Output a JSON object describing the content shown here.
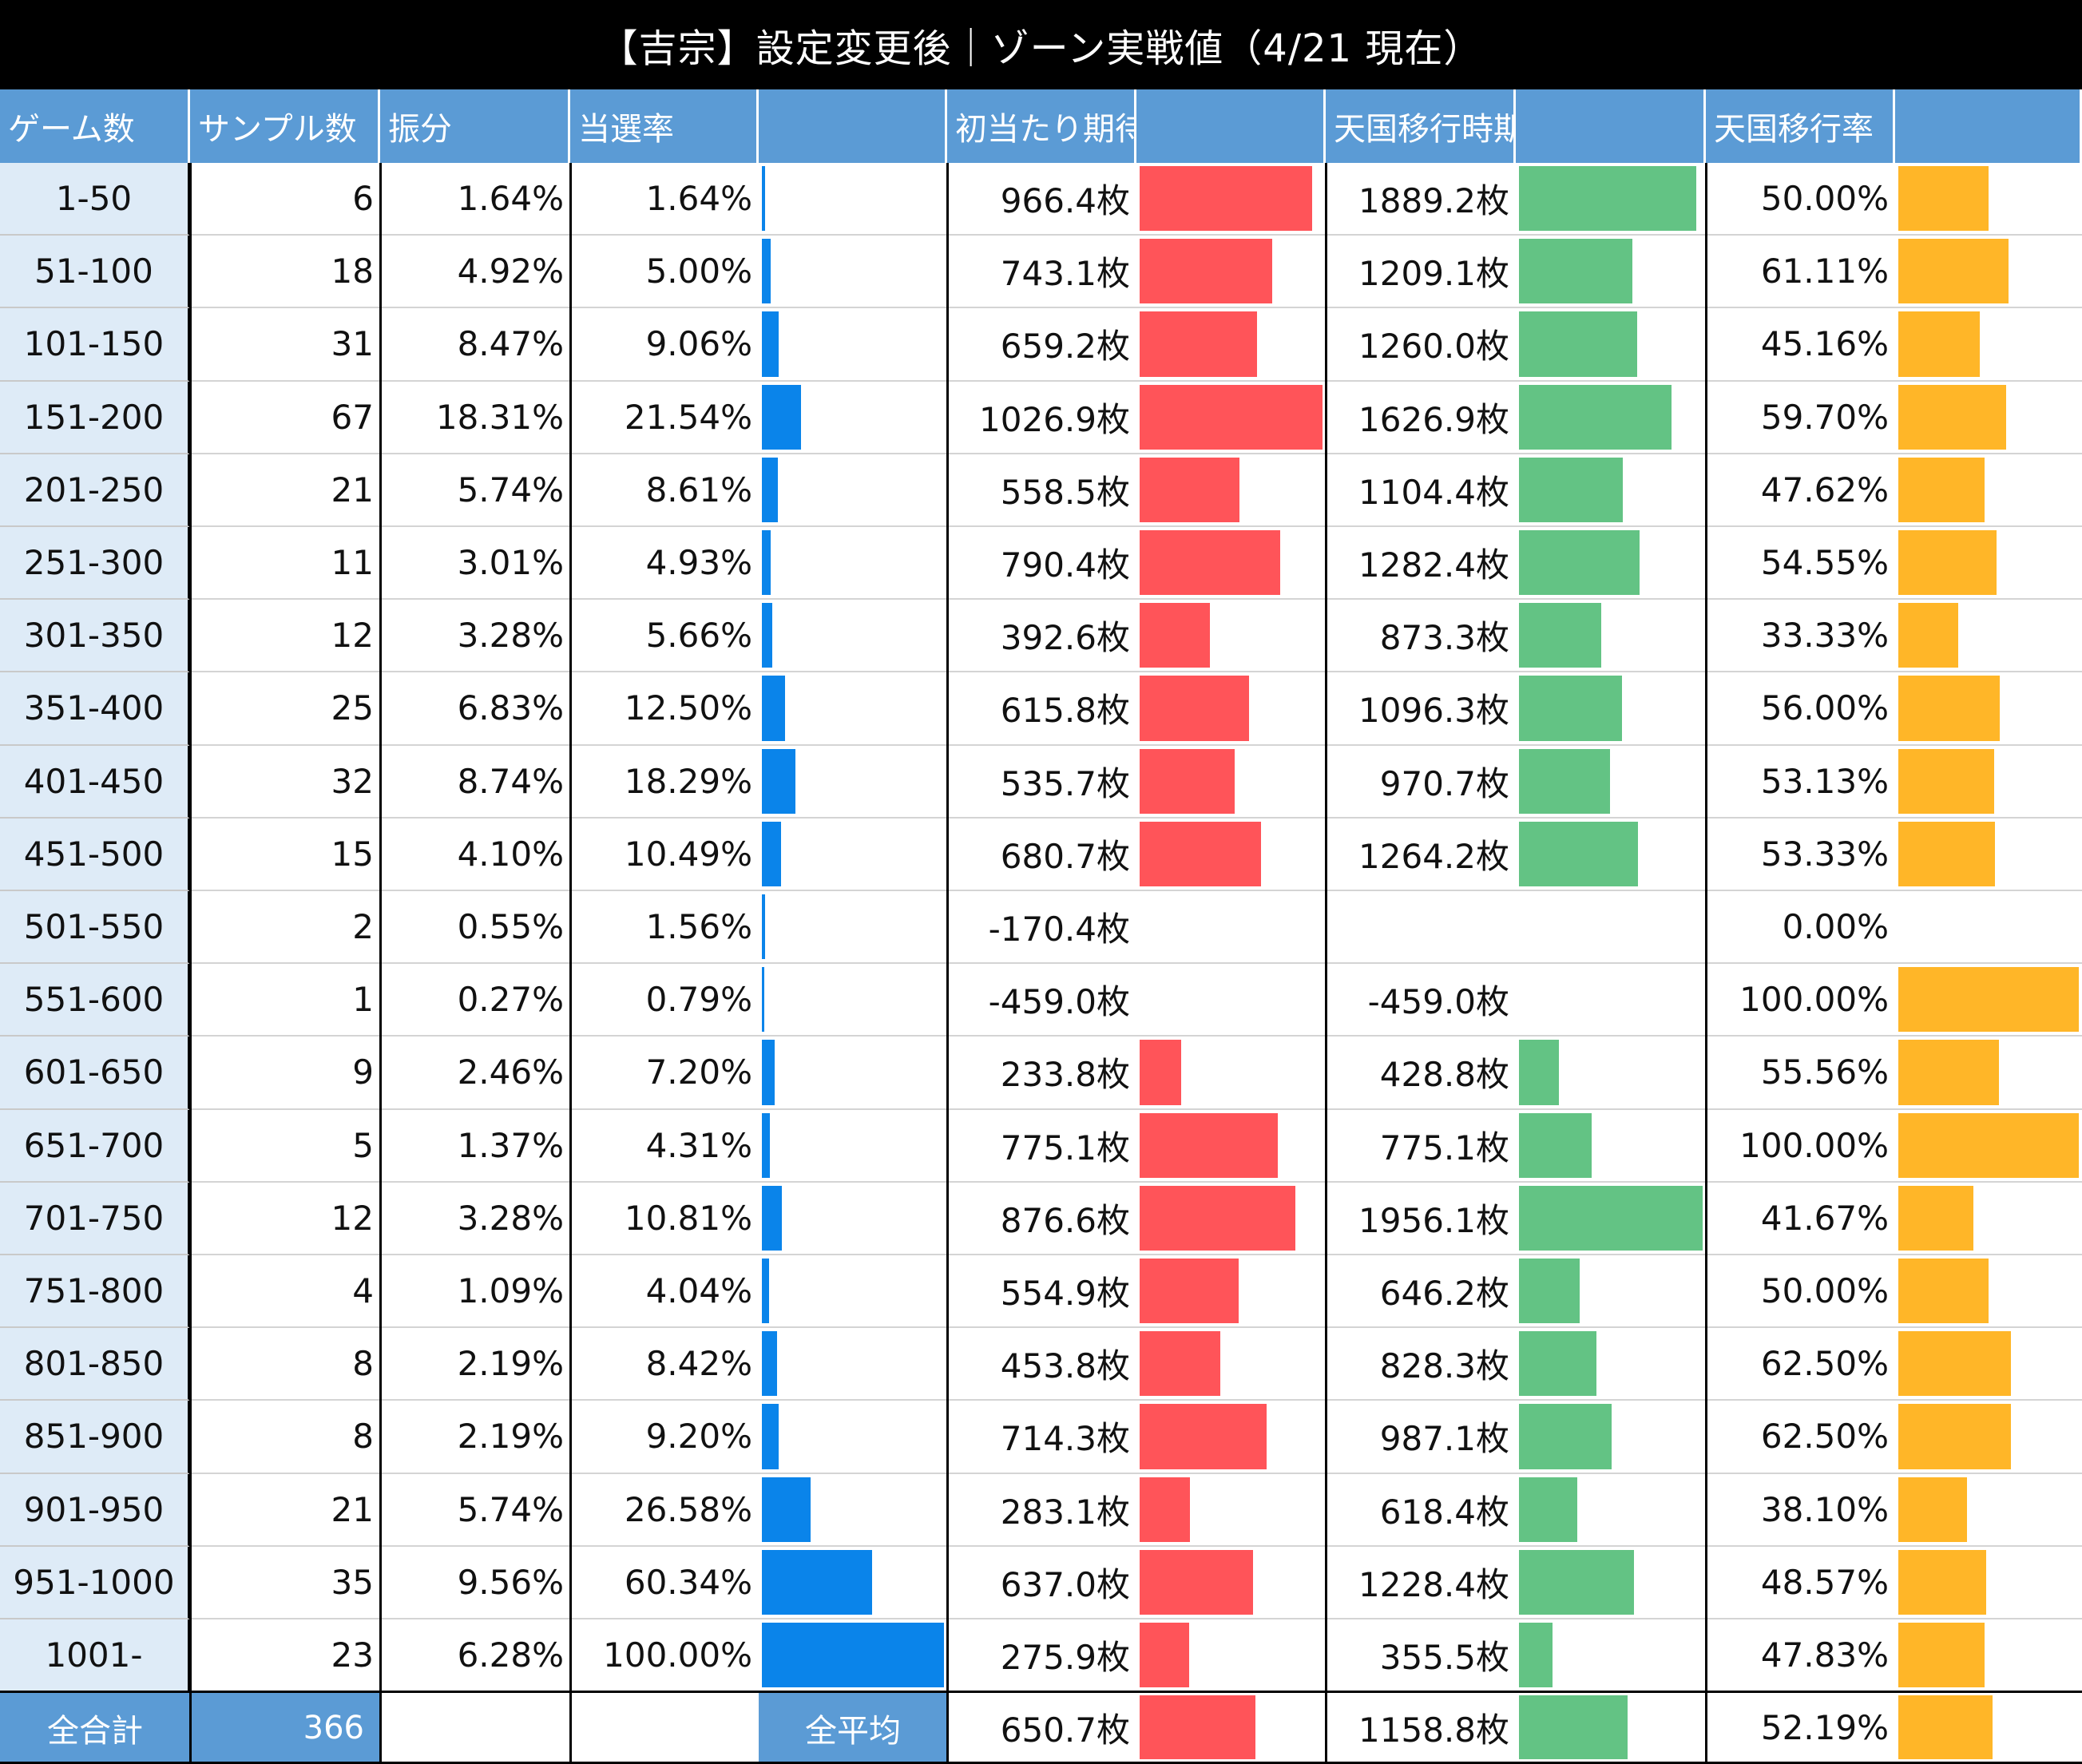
{
  "title": "【吉宗】設定変更後｜ゾーン実戦値（4/21 現在）",
  "headers": [
    "ゲーム数",
    "サンプル数",
    "振分",
    "当選率",
    "",
    "初当たり期待枚数",
    "",
    "天国移行時期待枚数",
    "",
    "天国移行率",
    ""
  ],
  "colors": {
    "header_bg": "#5b9bd5",
    "game_col_bg": "#deebf7",
    "hit_rate_bar": "#0a84ea",
    "first_hit_bar": "#ff5459",
    "heaven_bar": "#63c384",
    "heaven_rate_bar": "#ffb628"
  },
  "rows": [
    {
      "game": "1-50",
      "samples": "6",
      "dist": "1.64%",
      "hit": "1.64%",
      "first": "966.4枚",
      "heaven": "1889.2枚",
      "rate": "50.00%"
    },
    {
      "game": "51-100",
      "samples": "18",
      "dist": "4.92%",
      "hit": "5.00%",
      "first": "743.1枚",
      "heaven": "1209.1枚",
      "rate": "61.11%"
    },
    {
      "game": "101-150",
      "samples": "31",
      "dist": "8.47%",
      "hit": "9.06%",
      "first": "659.2枚",
      "heaven": "1260.0枚",
      "rate": "45.16%"
    },
    {
      "game": "151-200",
      "samples": "67",
      "dist": "18.31%",
      "hit": "21.54%",
      "first": "1026.9枚",
      "heaven": "1626.9枚",
      "rate": "59.70%"
    },
    {
      "game": "201-250",
      "samples": "21",
      "dist": "5.74%",
      "hit": "8.61%",
      "first": "558.5枚",
      "heaven": "1104.4枚",
      "rate": "47.62%"
    },
    {
      "game": "251-300",
      "samples": "11",
      "dist": "3.01%",
      "hit": "4.93%",
      "first": "790.4枚",
      "heaven": "1282.4枚",
      "rate": "54.55%"
    },
    {
      "game": "301-350",
      "samples": "12",
      "dist": "3.28%",
      "hit": "5.66%",
      "first": "392.6枚",
      "heaven": "873.3枚",
      "rate": "33.33%"
    },
    {
      "game": "351-400",
      "samples": "25",
      "dist": "6.83%",
      "hit": "12.50%",
      "first": "615.8枚",
      "heaven": "1096.3枚",
      "rate": "56.00%"
    },
    {
      "game": "401-450",
      "samples": "32",
      "dist": "8.74%",
      "hit": "18.29%",
      "first": "535.7枚",
      "heaven": "970.7枚",
      "rate": "53.13%"
    },
    {
      "game": "451-500",
      "samples": "15",
      "dist": "4.10%",
      "hit": "10.49%",
      "first": "680.7枚",
      "heaven": "1264.2枚",
      "rate": "53.33%"
    },
    {
      "game": "501-550",
      "samples": "2",
      "dist": "0.55%",
      "hit": "1.56%",
      "first": "-170.4枚",
      "heaven": "",
      "rate": "0.00%"
    },
    {
      "game": "551-600",
      "samples": "1",
      "dist": "0.27%",
      "hit": "0.79%",
      "first": "-459.0枚",
      "heaven": "-459.0枚",
      "rate": "100.00%"
    },
    {
      "game": "601-650",
      "samples": "9",
      "dist": "2.46%",
      "hit": "7.20%",
      "first": "233.8枚",
      "heaven": "428.8枚",
      "rate": "55.56%"
    },
    {
      "game": "651-700",
      "samples": "5",
      "dist": "1.37%",
      "hit": "4.31%",
      "first": "775.1枚",
      "heaven": "775.1枚",
      "rate": "100.00%"
    },
    {
      "game": "701-750",
      "samples": "12",
      "dist": "3.28%",
      "hit": "10.81%",
      "first": "876.6枚",
      "heaven": "1956.1枚",
      "rate": "41.67%"
    },
    {
      "game": "751-800",
      "samples": "4",
      "dist": "1.09%",
      "hit": "4.04%",
      "first": "554.9枚",
      "heaven": "646.2枚",
      "rate": "50.00%"
    },
    {
      "game": "801-850",
      "samples": "8",
      "dist": "2.19%",
      "hit": "8.42%",
      "first": "453.8枚",
      "heaven": "828.3枚",
      "rate": "62.50%"
    },
    {
      "game": "851-900",
      "samples": "8",
      "dist": "2.19%",
      "hit": "9.20%",
      "first": "714.3枚",
      "heaven": "987.1枚",
      "rate": "62.50%"
    },
    {
      "game": "901-950",
      "samples": "21",
      "dist": "5.74%",
      "hit": "26.58%",
      "first": "283.1枚",
      "heaven": "618.4枚",
      "rate": "38.10%"
    },
    {
      "game": "951-1000",
      "samples": "35",
      "dist": "9.56%",
      "hit": "60.34%",
      "first": "637.0枚",
      "heaven": "1228.4枚",
      "rate": "48.57%"
    },
    {
      "game": "1001-",
      "samples": "23",
      "dist": "6.28%",
      "hit": "100.00%",
      "first": "275.9枚",
      "heaven": "355.5枚",
      "rate": "47.83%"
    }
  ],
  "totals": {
    "total_label": "全合計",
    "total_samples": "366",
    "avg_label": "全平均",
    "avg_first": "650.7枚",
    "avg_heaven": "1158.8枚",
    "avg_rate": "52.19%"
  },
  "chart_data": {
    "type": "table",
    "columns": [
      "ゲーム数",
      "サンプル数",
      "振分",
      "当選率",
      "初当たり期待枚数",
      "天国移行時期待枚数",
      "天国移行率"
    ],
    "categories": [
      "1-50",
      "51-100",
      "101-150",
      "151-200",
      "201-250",
      "251-300",
      "301-350",
      "351-400",
      "401-450",
      "451-500",
      "501-550",
      "551-600",
      "601-650",
      "651-700",
      "701-750",
      "751-800",
      "801-850",
      "851-900",
      "901-950",
      "951-1000",
      "1001-"
    ],
    "series": [
      {
        "name": "サンプル数",
        "values": [
          6,
          18,
          31,
          67,
          21,
          11,
          12,
          25,
          32,
          15,
          2,
          1,
          9,
          5,
          12,
          4,
          8,
          8,
          21,
          35,
          23
        ]
      },
      {
        "name": "振分",
        "values": [
          1.64,
          4.92,
          8.47,
          18.31,
          5.74,
          3.01,
          3.28,
          6.83,
          8.74,
          4.1,
          0.55,
          0.27,
          2.46,
          1.37,
          3.28,
          1.09,
          2.19,
          2.19,
          5.74,
          9.56,
          6.28
        ]
      },
      {
        "name": "当選率",
        "values": [
          1.64,
          5.0,
          9.06,
          21.54,
          8.61,
          4.93,
          5.66,
          12.5,
          18.29,
          10.49,
          1.56,
          0.79,
          7.2,
          4.31,
          10.81,
          4.04,
          8.42,
          9.2,
          26.58,
          60.34,
          100.0
        ]
      },
      {
        "name": "初当たり期待枚数",
        "values": [
          966.4,
          743.1,
          659.2,
          1026.9,
          558.5,
          790.4,
          392.6,
          615.8,
          535.7,
          680.7,
          -170.4,
          -459.0,
          233.8,
          775.1,
          876.6,
          554.9,
          453.8,
          714.3,
          283.1,
          637.0,
          275.9
        ]
      },
      {
        "name": "天国移行時期待枚数",
        "values": [
          1889.2,
          1209.1,
          1260.0,
          1626.9,
          1104.4,
          1282.4,
          873.3,
          1096.3,
          970.7,
          1264.2,
          null,
          -459.0,
          428.8,
          775.1,
          1956.1,
          646.2,
          828.3,
          987.1,
          618.4,
          1228.4,
          355.5
        ]
      },
      {
        "name": "天国移行率",
        "values": [
          50.0,
          61.11,
          45.16,
          59.7,
          47.62,
          54.55,
          33.33,
          56.0,
          53.13,
          53.33,
          0.0,
          100.0,
          55.56,
          100.0,
          41.67,
          50.0,
          62.5,
          62.5,
          38.1,
          48.57,
          47.83
        ]
      }
    ],
    "totals": {
      "サンプル数": 366,
      "初当たり期待枚数": 650.7,
      "天国移行時期待枚数": 1158.8,
      "天国移行率": 52.19
    }
  }
}
